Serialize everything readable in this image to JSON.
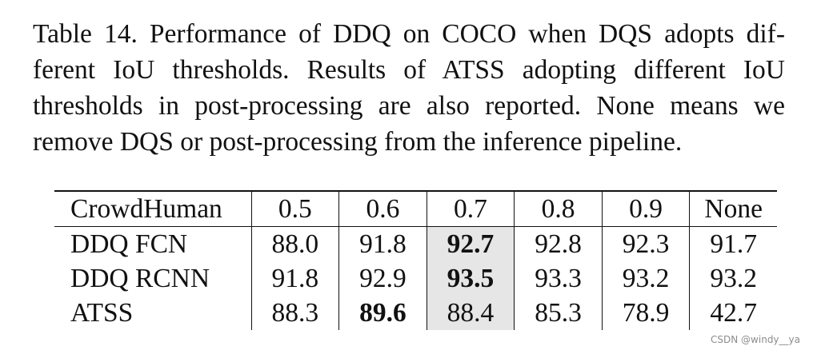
{
  "caption": {
    "lines": [
      "Table 14. Performance of DDQ on COCO when DQS adopts dif-",
      "ferent IoU thresholds. Results of ATSS adopting different IoU",
      "thresholds in post-processing are also reported. None means we",
      "remove DQS or post-processing from the inference pipeline."
    ]
  },
  "table": {
    "header": [
      "CrowdHuman",
      "0.5",
      "0.6",
      "0.7",
      "0.8",
      "0.9",
      "None"
    ],
    "rows": [
      {
        "label": "DDQ FCN",
        "cells": [
          "88.0",
          "91.8",
          "92.7",
          "92.8",
          "92.3",
          "91.7"
        ]
      },
      {
        "label": "DDQ RCNN",
        "cells": [
          "91.8",
          "92.9",
          "93.5",
          "93.3",
          "93.2",
          "93.2"
        ]
      },
      {
        "label": "ATSS",
        "cells": [
          "88.3",
          "89.6",
          "88.4",
          "85.3",
          "78.9",
          "42.7"
        ]
      }
    ],
    "highlight_color": "#e6e6e6"
  },
  "watermark": "CSDN @windy__ya"
}
